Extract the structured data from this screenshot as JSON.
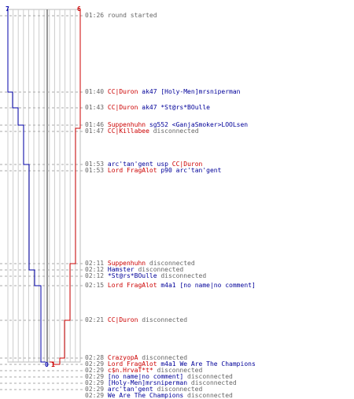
{
  "colors": {
    "red": "#cc0000",
    "blue": "#0000aa",
    "grid": "#bbbbbb",
    "dash": "#aaaaaa",
    "text": "#666666"
  },
  "header": {
    "left_count": "7",
    "right_count": "6"
  },
  "footer": {
    "left_count": "0",
    "right_count": "1"
  },
  "events": [
    {
      "time": "01:26",
      "parts": [
        {
          "text": "round started",
          "c": "msg"
        }
      ]
    },
    {
      "time": "01:40",
      "parts": [
        {
          "text": "CC|Duron",
          "c": "red"
        },
        {
          "text": " ak47 ",
          "c": "blue"
        },
        {
          "text": "[Holy-Men]mrsniperman",
          "c": "blue"
        }
      ]
    },
    {
      "time": "01:43",
      "parts": [
        {
          "text": "CC|Duron",
          "c": "red"
        },
        {
          "text": " ak47 ",
          "c": "blue"
        },
        {
          "text": "*St@rs*BOulle",
          "c": "blue"
        }
      ]
    },
    {
      "time": "01:46",
      "parts": [
        {
          "text": "Suppenhuhn",
          "c": "red"
        },
        {
          "text": " sg552 ",
          "c": "blue"
        },
        {
          "text": "<GanjaSmoker>LOOLsen",
          "c": "blue"
        }
      ]
    },
    {
      "time": "01:47",
      "parts": [
        {
          "text": "CC|Killabee",
          "c": "red"
        },
        {
          "text": " disconnected",
          "c": "msg"
        }
      ]
    },
    {
      "time": "01:53",
      "parts": [
        {
          "text": "arc'tan'gent",
          "c": "blue"
        },
        {
          "text": " usp ",
          "c": "blue"
        },
        {
          "text": "CC|Duron",
          "c": "red"
        }
      ]
    },
    {
      "time": "01:53",
      "parts": [
        {
          "text": "Lord FragAlot",
          "c": "red"
        },
        {
          "text": " p90 ",
          "c": "blue"
        },
        {
          "text": "arc'tan'gent",
          "c": "blue"
        }
      ]
    },
    {
      "time": "02:11",
      "parts": [
        {
          "text": "Suppenhuhn",
          "c": "red"
        },
        {
          "text": " disconnected",
          "c": "msg"
        }
      ]
    },
    {
      "time": "02:12",
      "parts": [
        {
          "text": "Hamster",
          "c": "blue"
        },
        {
          "text": " disconnected",
          "c": "msg"
        }
      ]
    },
    {
      "time": "02:12",
      "parts": [
        {
          "text": "*St@rs*BOulle",
          "c": "blue"
        },
        {
          "text": " disconnected",
          "c": "msg"
        }
      ]
    },
    {
      "time": "02:15",
      "parts": [
        {
          "text": "Lord FragAlot",
          "c": "red"
        },
        {
          "text": " m4a1 ",
          "c": "blue"
        },
        {
          "text": "[no name|no comment]",
          "c": "blue"
        }
      ]
    },
    {
      "time": "02:21",
      "parts": [
        {
          "text": "CC|Duron",
          "c": "red"
        },
        {
          "text": " disconnected",
          "c": "msg"
        }
      ]
    },
    {
      "time": "02:28",
      "parts": [
        {
          "text": "CrazyopA",
          "c": "red"
        },
        {
          "text": " disconnected",
          "c": "msg"
        }
      ]
    },
    {
      "time": "02:29",
      "parts": [
        {
          "text": "Lord FragAlot",
          "c": "red"
        },
        {
          "text": " m4a1 ",
          "c": "blue"
        },
        {
          "text": "We Are The Champions",
          "c": "blue"
        }
      ]
    },
    {
      "time": "02:29",
      "parts": [
        {
          "text": "c$n.HrvaT*t*",
          "c": "red"
        },
        {
          "text": " disconnected",
          "c": "msg"
        }
      ]
    },
    {
      "time": "02:29",
      "parts": [
        {
          "text": "[no name|no comment]",
          "c": "blue"
        },
        {
          "text": " disconnected",
          "c": "msg"
        }
      ]
    },
    {
      "time": "02:29",
      "parts": [
        {
          "text": "[Holy-Men]mrsniperman",
          "c": "blue"
        },
        {
          "text": " disconnected",
          "c": "msg"
        }
      ]
    },
    {
      "time": "02:29",
      "parts": [
        {
          "text": "arc'tan'gent",
          "c": "blue"
        },
        {
          "text": " disconnected",
          "c": "msg"
        }
      ]
    },
    {
      "time": "02:29",
      "parts": [
        {
          "text": "We Are The Champions",
          "c": "blue"
        },
        {
          "text": " disconnected",
          "c": "msg"
        }
      ]
    }
  ]
}
